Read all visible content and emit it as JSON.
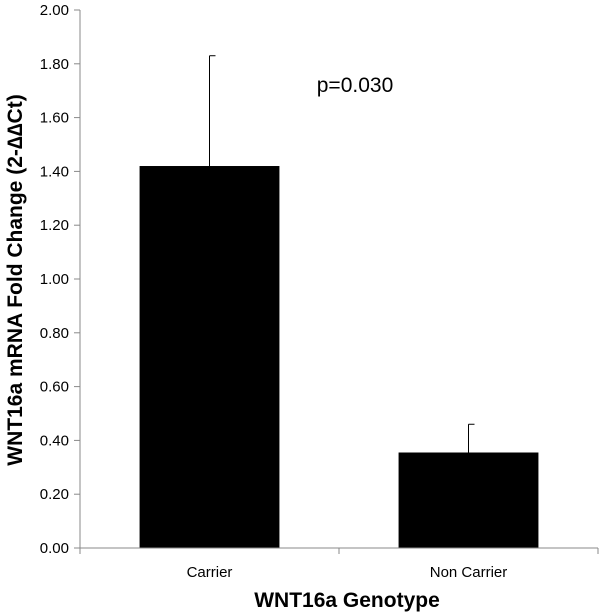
{
  "chart_data": {
    "type": "bar",
    "categories": [
      "Carrier",
      "Non Carrier"
    ],
    "series": [
      {
        "values": [
          1.42,
          0.355
        ],
        "error_plus": [
          0.41,
          0.105
        ],
        "color": "#000000"
      }
    ],
    "xlabel": "WNT16a Genotype",
    "ylabel": "WNT16a mRNA Fold Change (2-∆∆Ct)",
    "ylim": [
      0,
      2.0
    ],
    "yticks": [
      "0.00",
      "0.20",
      "0.40",
      "0.60",
      "0.80",
      "1.00",
      "1.20",
      "1.40",
      "1.60",
      "1.80",
      "2.00"
    ],
    "grid": false,
    "legend": "none",
    "annotations": [
      {
        "text": "p=0.030"
      }
    ]
  }
}
